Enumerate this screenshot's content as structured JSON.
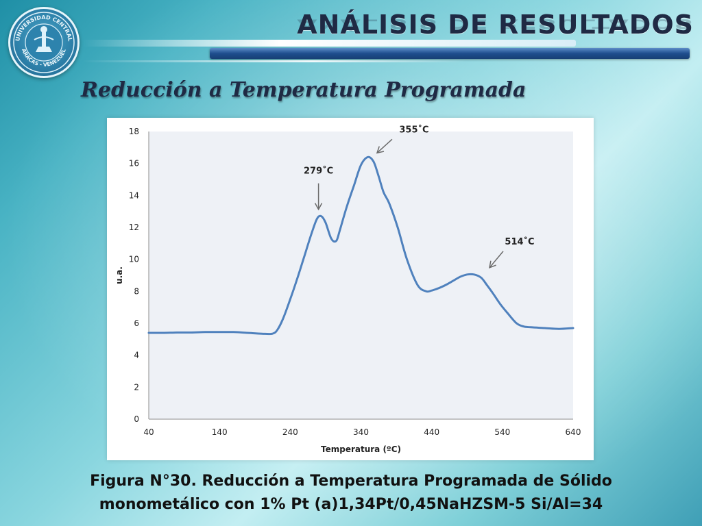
{
  "header": {
    "title": "ANÁLISIS DE RESULTADOS",
    "subtitle": "Reducción a Temperatura Programada"
  },
  "logo": {
    "text_top": "UNIVERSIDAD CENTRAL",
    "text_bottom": "CARACAS - VENEZUELA",
    "icon": "university-seal"
  },
  "caption": {
    "line1": "Figura N°30. Reducción a Temperatura Programada de Sólido",
    "line2": "monometálico con 1% Pt (a)1,34Pt/0,45NaHZSM-5 Si/Al=34"
  },
  "colors": {
    "series": "#4f81bd",
    "plot_area": "#eef1f6",
    "arrow": "#6b6b6b",
    "title": "#1f2a44"
  },
  "chart_data": {
    "type": "line",
    "title": "",
    "xlabel": "Temperatura  (ºC)",
    "ylabel": "u.a.",
    "xlim": [
      40,
      640
    ],
    "ylim": [
      0,
      18
    ],
    "xticks": [
      40,
      140,
      240,
      340,
      440,
      540,
      640
    ],
    "yticks": [
      0,
      2,
      4,
      6,
      8,
      10,
      12,
      14,
      16,
      18
    ],
    "grid": false,
    "legend": "none",
    "series": [
      {
        "x": [
          40,
          60,
          80,
          100,
          120,
          140,
          160,
          180,
          200,
          215,
          222,
          230,
          240,
          250,
          260,
          270,
          278,
          284,
          290,
          298,
          305,
          310,
          320,
          330,
          340,
          350,
          358,
          365,
          372,
          380,
          392,
          405,
          420,
          432,
          440,
          450,
          460,
          470,
          480,
          490,
          500,
          510,
          518,
          527,
          537,
          548,
          560,
          570,
          580,
          600,
          620,
          640
        ],
        "y": [
          5.4,
          5.4,
          5.42,
          5.42,
          5.45,
          5.45,
          5.45,
          5.4,
          5.35,
          5.35,
          5.6,
          6.3,
          7.5,
          8.8,
          10.2,
          11.6,
          12.55,
          12.7,
          12.3,
          11.3,
          11.15,
          11.8,
          13.3,
          14.6,
          15.9,
          16.4,
          16.1,
          15.2,
          14.2,
          13.5,
          12.0,
          10.0,
          8.4,
          8.0,
          8.05,
          8.2,
          8.4,
          8.65,
          8.9,
          9.05,
          9.05,
          8.85,
          8.4,
          7.85,
          7.2,
          6.6,
          6.0,
          5.8,
          5.75,
          5.7,
          5.65,
          5.7
        ]
      }
    ],
    "annotations": [
      {
        "text": "279˚C",
        "x": 280,
        "y": 12.7
      },
      {
        "text": "355˚C",
        "x": 355,
        "y": 16.4
      },
      {
        "text": "514˚C",
        "x": 514,
        "y": 9.05
      }
    ]
  }
}
